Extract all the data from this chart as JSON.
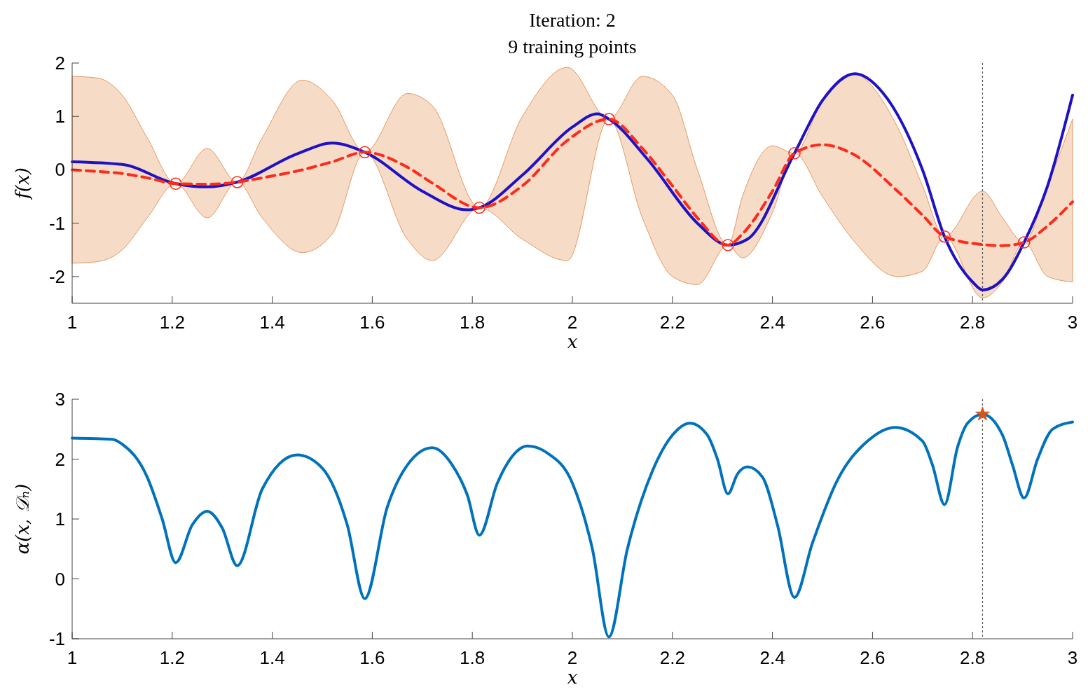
{
  "chart_data": [
    {
      "type": "line",
      "title": "Iteration: 2",
      "subtitle": "9 training points",
      "xlabel": "x",
      "ylabel": "f(x)",
      "xlim": [
        1,
        3
      ],
      "ylim": [
        -2.5,
        2
      ],
      "xticks": [
        1,
        1.2,
        1.4,
        1.6,
        1.8,
        2,
        2.2,
        2.4,
        2.6,
        2.8,
        3
      ],
      "yticks": [
        -2,
        -1,
        0,
        1,
        2
      ],
      "grid": false,
      "ref_lines": [
        {
          "axis": "x",
          "value": 2.82,
          "color": "#555555",
          "line_style": "dotted"
        }
      ],
      "series": [
        {
          "color": "#1f12c4",
          "x": [
            1,
            1.1,
            1.207,
            1.27,
            1.33,
            1.45,
            1.52,
            1.585,
            1.7,
            1.79,
            1.814,
            1.9,
            2,
            2.05,
            2.073,
            2.15,
            2.25,
            2.311,
            2.35,
            2.444,
            2.5,
            2.565,
            2.62,
            2.7,
            2.744,
            2.8,
            2.82,
            2.86,
            2.903,
            2.95,
            3
          ],
          "values": [
            0.15,
            0.1,
            -0.26,
            -0.32,
            -0.23,
            0.3,
            0.5,
            0.33,
            -0.4,
            -0.75,
            -0.71,
            -0.1,
            0.8,
            1.05,
            0.95,
            0.2,
            -1.0,
            -1.41,
            -1.3,
            0.31,
            1.3,
            1.8,
            1.45,
            0,
            -1.25,
            -2.1,
            -2.25,
            -2.05,
            -1.36,
            -0.3,
            1.4
          ]
        },
        {
          "color": "#ff2a1a",
          "line_style": "dashed",
          "x": [
            1,
            1.05,
            1.1,
            1.15,
            1.207,
            1.27,
            1.33,
            1.38,
            1.46,
            1.52,
            1.585,
            1.67,
            1.72,
            1.814,
            1.9,
            1.99,
            2.073,
            2.14,
            2.2,
            2.25,
            2.311,
            2.34,
            2.4,
            2.444,
            2.5,
            2.56,
            2.65,
            2.7,
            2.744,
            2.82,
            2.86,
            2.903,
            2.95,
            3
          ],
          "lower": [
            -1.75,
            -1.72,
            -1.5,
            -0.9,
            -0.26,
            -0.9,
            -0.23,
            -0.9,
            -1.55,
            -1.2,
            0.33,
            -1.3,
            -1.7,
            -0.71,
            -1.3,
            -1.7,
            0.95,
            -0.9,
            -2.0,
            -2.15,
            -1.41,
            -1.65,
            -0.8,
            0.31,
            -0.5,
            -1.3,
            -2.0,
            -1.9,
            -1.25,
            -2.4,
            -2.1,
            -1.36,
            -2.0,
            -2.1
          ],
          "upper": [
            1.75,
            1.72,
            1.4,
            0.6,
            -0.26,
            0.4,
            -0.23,
            0.6,
            1.68,
            1.3,
            0.33,
            1.43,
            1.2,
            -0.71,
            1.0,
            1.92,
            0.95,
            1.75,
            1.4,
            0.0,
            -1.41,
            -0.5,
            0.45,
            0.31,
            1.3,
            1.8,
            0.8,
            -0.3,
            -1.25,
            -0.4,
            -0.9,
            -1.36,
            -0.3,
            0.95
          ],
          "values": [
            0,
            -0.03,
            -0.07,
            -0.15,
            -0.26,
            -0.27,
            -0.23,
            -0.15,
            0,
            0.15,
            0.33,
            0.05,
            -0.25,
            -0.71,
            -0.3,
            0.55,
            0.95,
            0.4,
            -0.3,
            -0.9,
            -1.41,
            -1.2,
            -0.4,
            0.31,
            0.47,
            0.3,
            -0.4,
            -0.85,
            -1.25,
            -1.4,
            -1.42,
            -1.36,
            -1.05,
            -0.6
          ]
        },
        {
          "type": "scatter",
          "color": "#ff2a1a",
          "marker": "circle",
          "x": [
            1.207,
            1.33,
            1.585,
            1.814,
            2.073,
            2.311,
            2.444,
            2.744,
            2.903
          ],
          "values": [
            -0.26,
            -0.23,
            0.33,
            -0.71,
            0.95,
            -1.41,
            0.31,
            -1.25,
            -1.36
          ]
        }
      ]
    },
    {
      "type": "line",
      "xlabel": "x",
      "ylabel": "α(x, 𝒟ₙ)",
      "xlim": [
        1,
        3
      ],
      "ylim": [
        -1,
        3
      ],
      "xticks": [
        1,
        1.2,
        1.4,
        1.6,
        1.8,
        2,
        2.2,
        2.4,
        2.6,
        2.8,
        3
      ],
      "yticks": [
        -1,
        0,
        1,
        2,
        3
      ],
      "grid": false,
      "ref_lines": [
        {
          "axis": "x",
          "value": 2.82,
          "color": "#555555",
          "line_style": "dotted"
        }
      ],
      "series": [
        {
          "color": "#0072bd",
          "x": [
            1,
            1.08,
            1.1,
            1.15,
            1.18,
            1.207,
            1.24,
            1.27,
            1.3,
            1.33,
            1.38,
            1.45,
            1.5,
            1.55,
            1.585,
            1.63,
            1.67,
            1.72,
            1.76,
            1.79,
            1.814,
            1.85,
            1.88,
            1.91,
            1.95,
            2,
            2.04,
            2.073,
            2.11,
            2.16,
            2.2,
            2.235,
            2.27,
            2.29,
            2.311,
            2.33,
            2.35,
            2.38,
            2.41,
            2.444,
            2.48,
            2.53,
            2.59,
            2.645,
            2.7,
            2.72,
            2.744,
            2.77,
            2.79,
            2.82,
            2.86,
            2.88,
            2.903,
            2.93,
            2.96,
            3
          ],
          "values": [
            2.35,
            2.33,
            2.25,
            1.7,
            1.0,
            0.27,
            0.9,
            1.13,
            0.85,
            0.22,
            1.5,
            2.07,
            1.85,
            0.9,
            -0.33,
            1.2,
            1.9,
            2.19,
            1.9,
            1.4,
            0.73,
            1.6,
            2.05,
            2.22,
            2.1,
            1.6,
            0.5,
            -0.97,
            0.5,
            1.8,
            2.4,
            2.6,
            2.4,
            2.0,
            1.42,
            1.75,
            1.87,
            1.7,
            0.9,
            -0.31,
            0.6,
            1.65,
            2.3,
            2.53,
            2.3,
            1.9,
            1.24,
            2.2,
            2.6,
            2.75,
            2.4,
            1.9,
            1.35,
            2.0,
            2.5,
            2.62
          ]
        },
        {
          "type": "scatter",
          "color": "#d95319",
          "marker": "star",
          "x": [
            2.82
          ],
          "values": [
            2.75
          ]
        }
      ]
    }
  ]
}
